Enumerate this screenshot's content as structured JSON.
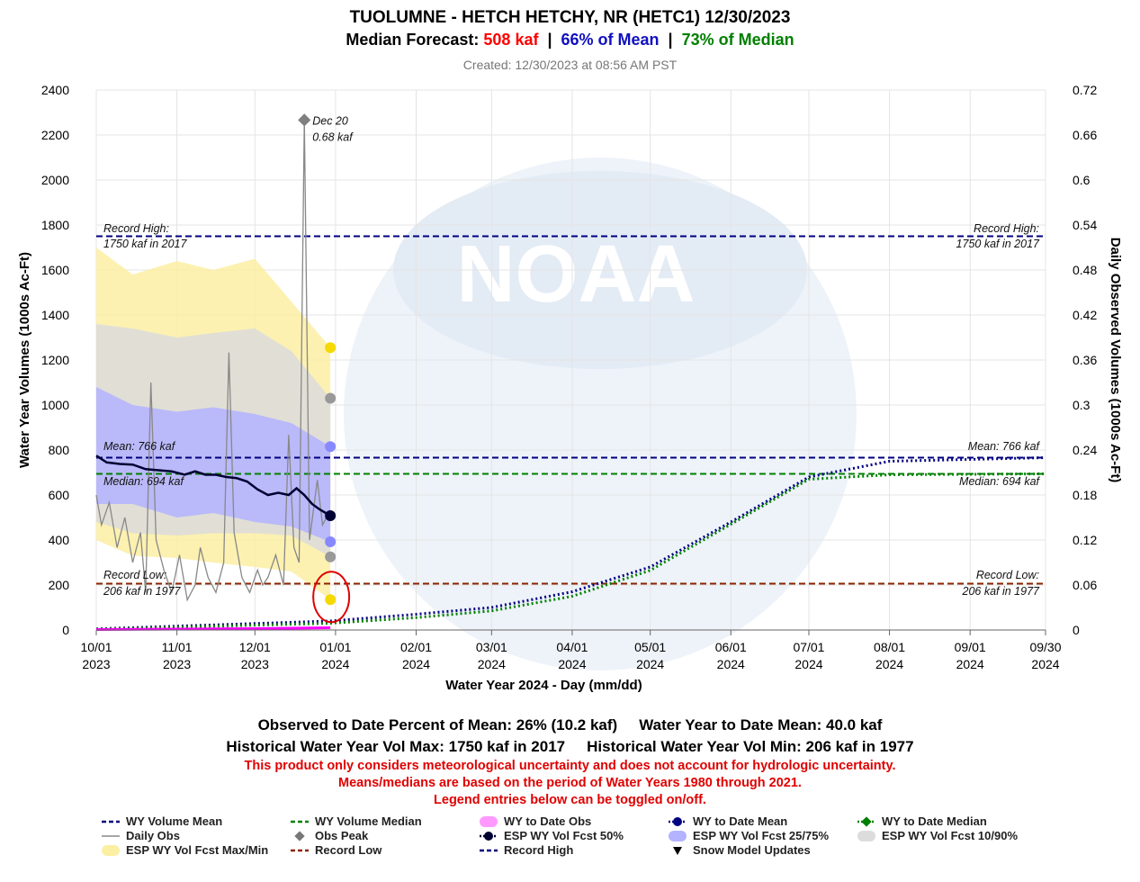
{
  "header": {
    "title": "TUOLUMNE - HETCH HETCHY, NR (HETC1)  12/30/2023",
    "forecast_prefix": "Median Forecast: ",
    "forecast_value": "508 kaf",
    "sep1": "  |  ",
    "pct_mean": "66% of Mean",
    "sep2": "  |  ",
    "pct_median": "73% of Median",
    "created": "Created: 12/30/2023 at 08:56 AM PST"
  },
  "colors": {
    "mean": "#000080",
    "median": "#008000",
    "obs_to_date": "#ff00ff",
    "daily_obs": "#888888",
    "fcst_50": "#000033",
    "fcst_25_75": "#b3b3ff",
    "fcst_10_90": "#dcdcdc",
    "fcst_max_min": "#fbefa3",
    "record_low": "#8b2500",
    "record_high": "#000080",
    "forecast_text": "#ff0000",
    "watermark": "#dfe8f3"
  },
  "chart_data": {
    "type": "line",
    "xlabel": "Water Year 2024 - Day (mm/dd)",
    "ylabel": "Water Year Volumes (1000s Ac-Ft)",
    "y2label": "Daily Observed Volumes (1000s Ac-Ft)",
    "ylim": [
      0,
      2400
    ],
    "y2lim": [
      0,
      0.72
    ],
    "xlim": [
      "2023-10-01",
      "2024-09-30"
    ],
    "x_ticks": [
      {
        "month": "10/01",
        "year": "2023",
        "date": "2023-10-01"
      },
      {
        "month": "11/01",
        "year": "2023",
        "date": "2023-11-01"
      },
      {
        "month": "12/01",
        "year": "2023",
        "date": "2023-12-01"
      },
      {
        "month": "01/01",
        "year": "2024",
        "date": "2024-01-01"
      },
      {
        "month": "02/01",
        "year": "2024",
        "date": "2024-02-01"
      },
      {
        "month": "03/01",
        "year": "2024",
        "date": "2024-03-01"
      },
      {
        "month": "04/01",
        "year": "2024",
        "date": "2024-04-01"
      },
      {
        "month": "05/01",
        "year": "2024",
        "date": "2024-05-01"
      },
      {
        "month": "06/01",
        "year": "2024",
        "date": "2024-06-01"
      },
      {
        "month": "07/01",
        "year": "2024",
        "date": "2024-07-01"
      },
      {
        "month": "08/01",
        "year": "2024",
        "date": "2024-08-01"
      },
      {
        "month": "09/01",
        "year": "2024",
        "date": "2024-09-01"
      },
      {
        "month": "09/30",
        "year": "2024",
        "date": "2024-09-30"
      }
    ],
    "y_ticks": [
      0,
      200,
      400,
      600,
      800,
      1000,
      1200,
      1400,
      1600,
      1800,
      2000,
      2200,
      2400
    ],
    "y2_ticks": [
      "0",
      "0.06",
      "0.12",
      "0.18",
      "0.24",
      "0.3",
      "0.36",
      "0.42",
      "0.48",
      "0.54",
      "0.6",
      "0.66",
      "0.72"
    ],
    "reference_lines": {
      "mean": 766,
      "median": 694,
      "record_high": 1750,
      "record_low": 206
    },
    "annotations": {
      "record_high_l1": "Record High:",
      "record_high_l2": "1750 kaf in 2017",
      "record_low_l1": "Record Low:",
      "record_low_l2": "206 kaf in 1977",
      "mean": "Mean: 766 kaf",
      "median": "Median: 694 kaf",
      "peak_date": "Dec 20",
      "peak_value": "0.68 kaf"
    },
    "obs_peak": {
      "date": "2023-12-20",
      "value": 0.68
    },
    "esp_fcst_points": {
      "date": "2023-12-30",
      "max": 1255,
      "p90": 1030,
      "p75": 815,
      "p50": 508,
      "p25": 392,
      "p10": 325,
      "min": 135
    },
    "esp_fcst_50_trace": [
      {
        "x": "2023-10-01",
        "y": 775
      },
      {
        "x": "2023-10-05",
        "y": 745
      },
      {
        "x": "2023-10-10",
        "y": 738
      },
      {
        "x": "2023-10-15",
        "y": 735
      },
      {
        "x": "2023-10-20",
        "y": 715
      },
      {
        "x": "2023-10-25",
        "y": 710
      },
      {
        "x": "2023-10-30",
        "y": 705
      },
      {
        "x": "2023-11-04",
        "y": 690
      },
      {
        "x": "2023-11-08",
        "y": 705
      },
      {
        "x": "2023-11-12",
        "y": 690
      },
      {
        "x": "2023-11-16",
        "y": 690
      },
      {
        "x": "2023-11-20",
        "y": 680
      },
      {
        "x": "2023-11-24",
        "y": 675
      },
      {
        "x": "2023-11-28",
        "y": 660
      },
      {
        "x": "2023-12-02",
        "y": 625
      },
      {
        "x": "2023-12-06",
        "y": 600
      },
      {
        "x": "2023-12-10",
        "y": 610
      },
      {
        "x": "2023-12-14",
        "y": 600
      },
      {
        "x": "2023-12-17",
        "y": 630
      },
      {
        "x": "2023-12-20",
        "y": 600
      },
      {
        "x": "2023-12-23",
        "y": 560
      },
      {
        "x": "2023-12-26",
        "y": 535
      },
      {
        "x": "2023-12-30",
        "y": 508
      }
    ],
    "esp_band_10_90": [
      {
        "x": "2023-10-01",
        "lo": 480,
        "hi": 1360
      },
      {
        "x": "2023-10-15",
        "lo": 430,
        "hi": 1340
      },
      {
        "x": "2023-11-01",
        "lo": 420,
        "hi": 1300
      },
      {
        "x": "2023-11-15",
        "lo": 430,
        "hi": 1320
      },
      {
        "x": "2023-12-01",
        "lo": 430,
        "hi": 1340
      },
      {
        "x": "2023-12-15",
        "lo": 420,
        "hi": 1240
      },
      {
        "x": "2023-12-30",
        "lo": 325,
        "hi": 1030
      }
    ],
    "esp_band_25_75": [
      {
        "x": "2023-10-01",
        "lo": 560,
        "hi": 1080
      },
      {
        "x": "2023-10-15",
        "lo": 560,
        "hi": 1000
      },
      {
        "x": "2023-11-01",
        "lo": 500,
        "hi": 970
      },
      {
        "x": "2023-11-15",
        "lo": 520,
        "hi": 990
      },
      {
        "x": "2023-12-01",
        "lo": 480,
        "hi": 960
      },
      {
        "x": "2023-12-15",
        "lo": 460,
        "hi": 920
      },
      {
        "x": "2023-12-30",
        "lo": 392,
        "hi": 815
      }
    ],
    "esp_band_max_min": [
      {
        "x": "2023-10-01",
        "lo": 400,
        "hi": 1700
      },
      {
        "x": "2023-10-15",
        "lo": 330,
        "hi": 1580
      },
      {
        "x": "2023-11-01",
        "lo": 320,
        "hi": 1640
      },
      {
        "x": "2023-11-15",
        "lo": 300,
        "hi": 1600
      },
      {
        "x": "2023-12-01",
        "lo": 280,
        "hi": 1650
      },
      {
        "x": "2023-12-15",
        "lo": 260,
        "hi": 1460
      },
      {
        "x": "2023-12-30",
        "lo": 135,
        "hi": 1255
      }
    ],
    "wy_to_date_obs": [
      {
        "x": "2023-10-01",
        "y": 2
      },
      {
        "x": "2023-11-01",
        "y": 4
      },
      {
        "x": "2023-12-01",
        "y": 6
      },
      {
        "x": "2023-12-30",
        "y": 10.2
      }
    ],
    "wy_to_date_mean": [
      {
        "x": "2023-10-01",
        "y": 5
      },
      {
        "x": "2023-12-30",
        "y": 40
      },
      {
        "x": "2024-02-01",
        "y": 70
      },
      {
        "x": "2024-03-01",
        "y": 100
      },
      {
        "x": "2024-04-01",
        "y": 170
      },
      {
        "x": "2024-05-01",
        "y": 280
      },
      {
        "x": "2024-06-01",
        "y": 480
      },
      {
        "x": "2024-07-01",
        "y": 680
      },
      {
        "x": "2024-08-01",
        "y": 750
      },
      {
        "x": "2024-09-30",
        "y": 766
      }
    ],
    "wy_to_date_median": [
      {
        "x": "2023-10-01",
        "y": 4
      },
      {
        "x": "2023-12-30",
        "y": 30
      },
      {
        "x": "2024-02-01",
        "y": 55
      },
      {
        "x": "2024-03-01",
        "y": 85
      },
      {
        "x": "2024-04-01",
        "y": 150
      },
      {
        "x": "2024-05-01",
        "y": 265
      },
      {
        "x": "2024-06-01",
        "y": 470
      },
      {
        "x": "2024-07-01",
        "y": 670
      },
      {
        "x": "2024-08-01",
        "y": 690
      },
      {
        "x": "2024-09-30",
        "y": 694
      }
    ],
    "daily_obs": [
      {
        "x": "2023-10-01",
        "y": 0.18
      },
      {
        "x": "2023-10-03",
        "y": 0.14
      },
      {
        "x": "2023-10-06",
        "y": 0.17
      },
      {
        "x": "2023-10-09",
        "y": 0.11
      },
      {
        "x": "2023-10-12",
        "y": 0.15
      },
      {
        "x": "2023-10-15",
        "y": 0.09
      },
      {
        "x": "2023-10-18",
        "y": 0.13
      },
      {
        "x": "2023-10-20",
        "y": 0.05
      },
      {
        "x": "2023-10-22",
        "y": 0.33
      },
      {
        "x": "2023-10-24",
        "y": 0.12
      },
      {
        "x": "2023-10-27",
        "y": 0.08
      },
      {
        "x": "2023-10-30",
        "y": 0.05
      },
      {
        "x": "2023-11-02",
        "y": 0.1
      },
      {
        "x": "2023-11-05",
        "y": 0.04
      },
      {
        "x": "2023-11-08",
        "y": 0.06
      },
      {
        "x": "2023-11-10",
        "y": 0.11
      },
      {
        "x": "2023-11-13",
        "y": 0.07
      },
      {
        "x": "2023-11-16",
        "y": 0.05
      },
      {
        "x": "2023-11-19",
        "y": 0.09
      },
      {
        "x": "2023-11-21",
        "y": 0.37
      },
      {
        "x": "2023-11-23",
        "y": 0.13
      },
      {
        "x": "2023-11-26",
        "y": 0.07
      },
      {
        "x": "2023-11-29",
        "y": 0.05
      },
      {
        "x": "2023-12-02",
        "y": 0.08
      },
      {
        "x": "2023-12-04",
        "y": 0.06
      },
      {
        "x": "2023-12-06",
        "y": 0.07
      },
      {
        "x": "2023-12-09",
        "y": 0.1
      },
      {
        "x": "2023-12-12",
        "y": 0.06
      },
      {
        "x": "2023-12-14",
        "y": 0.26
      },
      {
        "x": "2023-12-16",
        "y": 0.11
      },
      {
        "x": "2023-12-18",
        "y": 0.09
      },
      {
        "x": "2023-12-20",
        "y": 0.68
      },
      {
        "x": "2023-12-22",
        "y": 0.12
      },
      {
        "x": "2023-12-25",
        "y": 0.2
      },
      {
        "x": "2023-12-27",
        "y": 0.14
      },
      {
        "x": "2023-12-30",
        "y": 0.16
      }
    ]
  },
  "stats": {
    "obs_pct_mean": "Observed to Date Percent of Mean: 26% (10.2 kaf)",
    "wy_to_date_mean": "Water Year to Date Mean: 40.0 kaf",
    "hist_max": "Historical Water Year Vol Max: 1750 kaf in 2017",
    "hist_min": "Historical Water Year Vol Min: 206 kaf in 1977",
    "warning1": "This product only considers meteorological uncertainty and does not account for hydrologic uncertainty.",
    "warning2": "Means/medians are based on the period of Water Years 1980 through 2021.",
    "warning3": "Legend entries below can be toggled on/off."
  },
  "legend": [
    {
      "label": "WY Volume Mean",
      "symbol": "dash",
      "color": "#000080"
    },
    {
      "label": "WY Volume Median",
      "symbol": "dash",
      "color": "#008000"
    },
    {
      "label": "WY to Date Obs",
      "symbol": "pill",
      "color": "#ff99ff"
    },
    {
      "label": "WY to Date Mean",
      "symbol": "dot-line",
      "color": "#000080"
    },
    {
      "label": "WY to Date Median",
      "symbol": "diamond-line",
      "color": "#008000"
    },
    {
      "label": "Daily Obs",
      "symbol": "line",
      "color": "#888888"
    },
    {
      "label": "Obs Peak",
      "symbol": "diamond",
      "color": "#777777"
    },
    {
      "label": "ESP WY Vol Fcst 50%",
      "symbol": "dot-line",
      "color": "#000033"
    },
    {
      "label": "ESP WY Vol Fcst 25/75%",
      "symbol": "pill",
      "color": "#b3b3ff"
    },
    {
      "label": "ESP WY Vol Fcst 10/90%",
      "symbol": "pill",
      "color": "#dcdcdc"
    },
    {
      "label": "ESP WY Vol Fcst Max/Min",
      "symbol": "pill",
      "color": "#fbefa3"
    },
    {
      "label": "Record Low",
      "symbol": "dash",
      "color": "#8b2500"
    },
    {
      "label": "Record High",
      "symbol": "dash",
      "color": "#000080"
    },
    {
      "label": "Snow Model Updates",
      "symbol": "triangle",
      "color": "#000000"
    }
  ]
}
